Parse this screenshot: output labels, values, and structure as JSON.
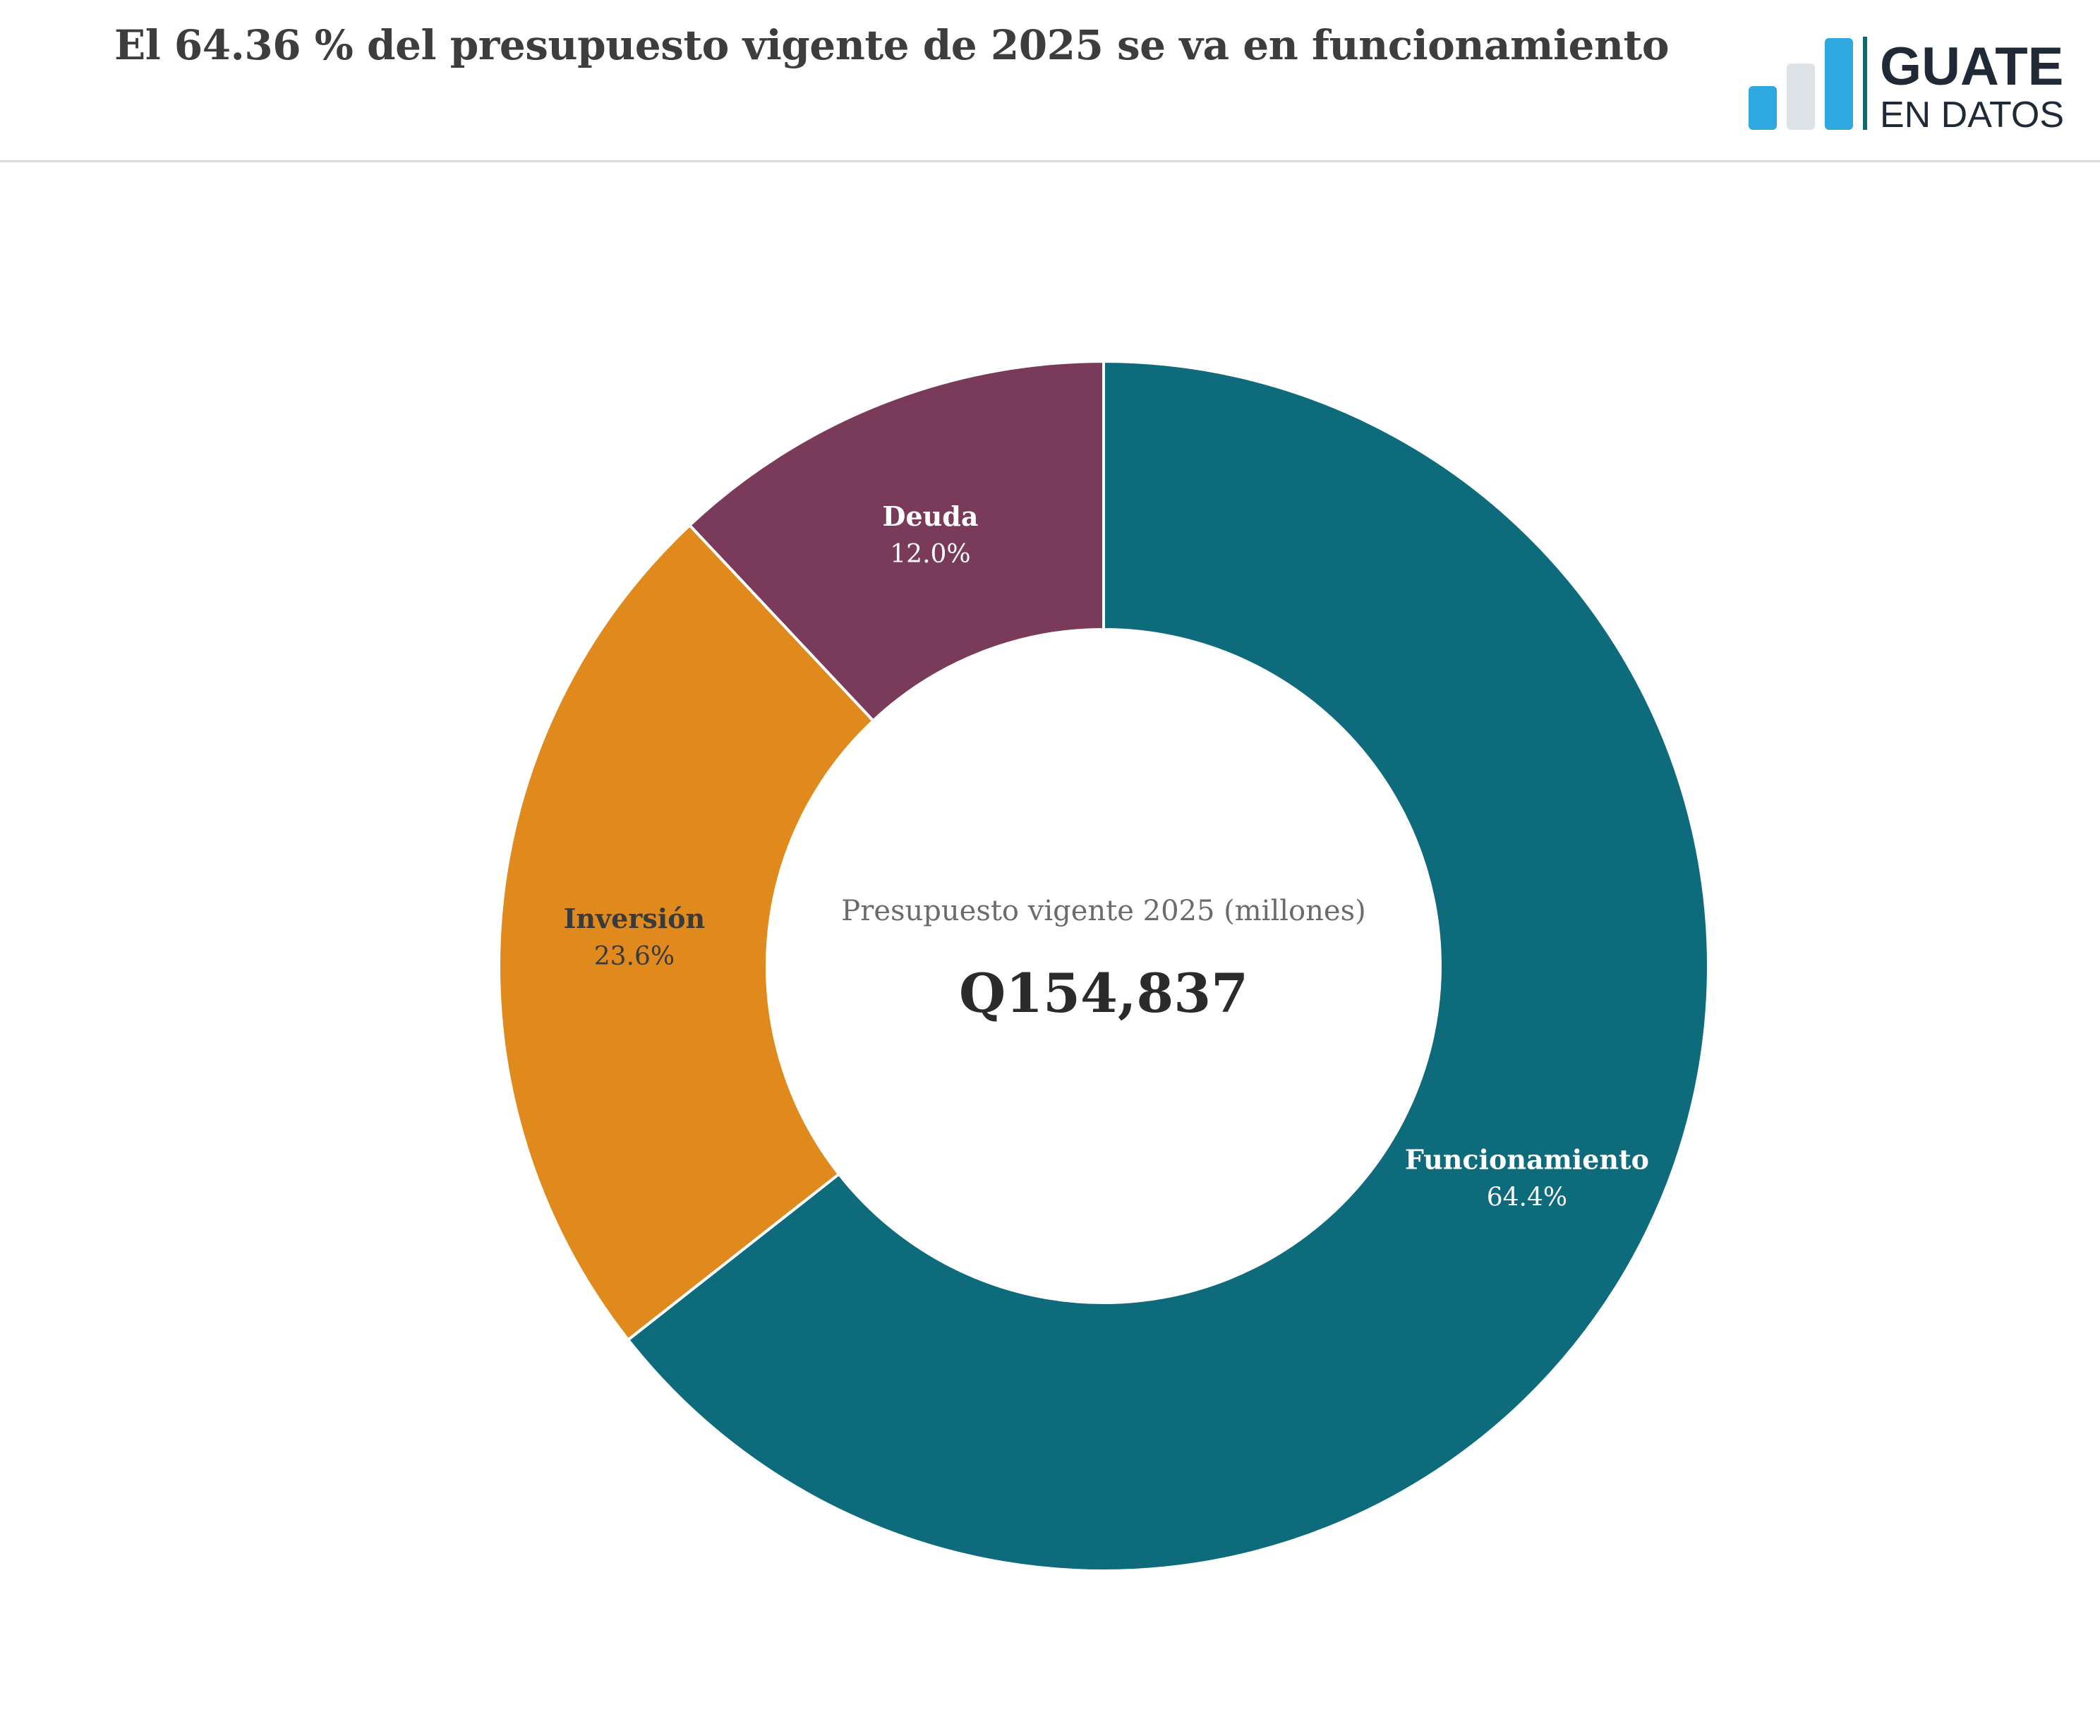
{
  "header": {
    "title": "El 64.36 % del presupuesto vigente de 2025 se va en funcionamiento"
  },
  "logo": {
    "line1": "GUATE",
    "line2": "EN DATOS",
    "bar_colors": [
      "#2ea8df",
      "#dde3e6",
      "#2ea8df"
    ],
    "divider_color": "#0f6a6e",
    "text_color": "#1f2a36"
  },
  "chart_data": {
    "type": "pie",
    "variant": "donut",
    "center_label": "Presupuesto vigente 2025 (millones)",
    "center_value": "Q154,837",
    "slices": [
      {
        "name": "Funcionamiento",
        "value": 64.4,
        "label": "64.4%",
        "color": "#0e6b7b",
        "label_color": "#ffffff"
      },
      {
        "name": "Inversión",
        "value": 23.6,
        "label": "23.6%",
        "color": "#e08a1e",
        "label_color": "#3a3a3a"
      },
      {
        "name": "Deuda",
        "value": 12.0,
        "label": "12.0%",
        "color": "#7a3b5b",
        "label_color": "#ffffff"
      }
    ]
  }
}
